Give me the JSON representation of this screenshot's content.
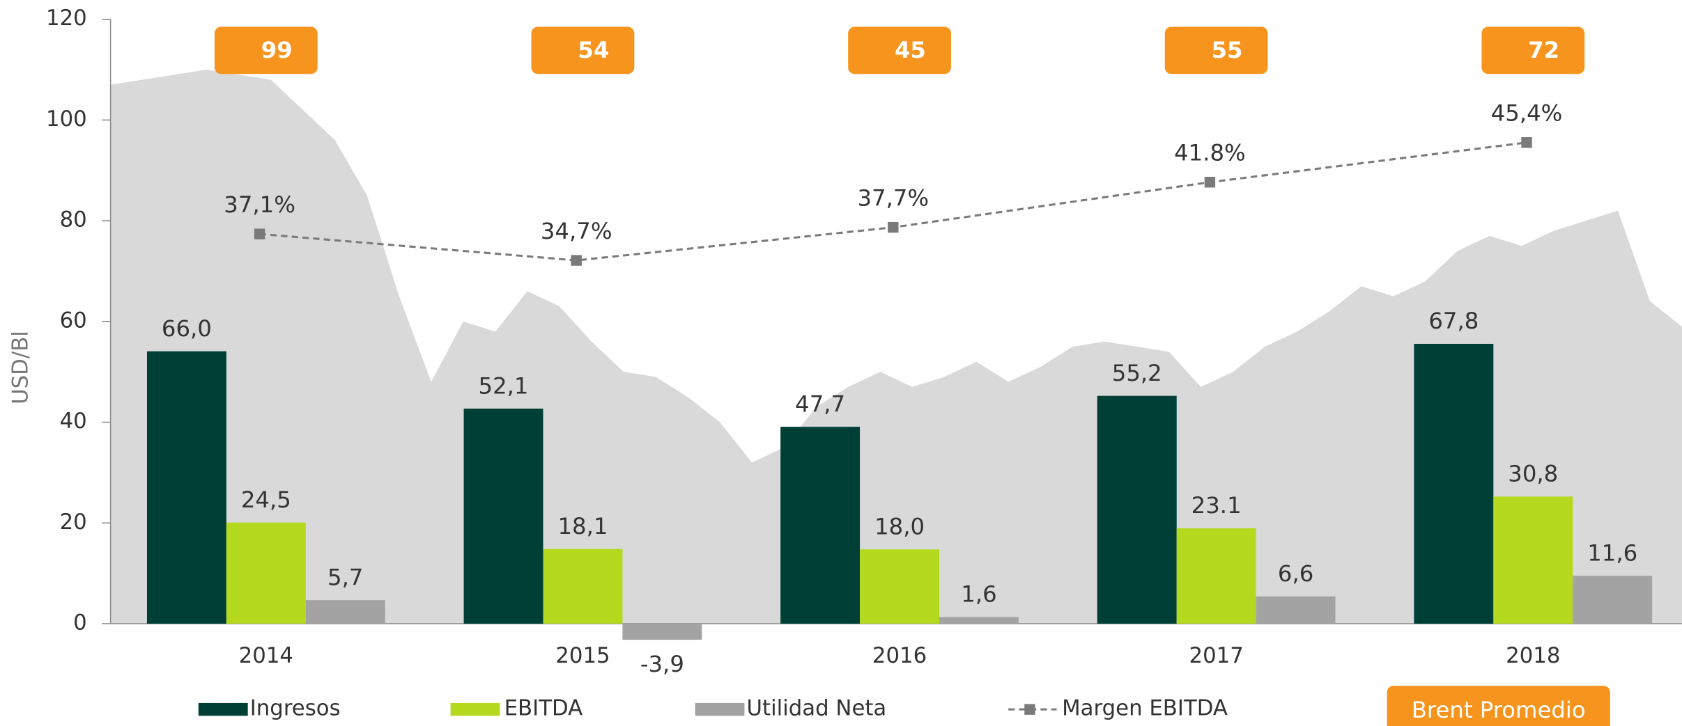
{
  "chart_data": {
    "type": "bar",
    "ylabel": "USD/Bl",
    "ylim": [
      0,
      120
    ],
    "yticks": [
      0,
      20,
      40,
      60,
      80,
      100,
      120
    ],
    "categories": [
      "2014",
      "2015",
      "2016",
      "2017",
      "2018"
    ],
    "series": [
      {
        "name": "Ingresos",
        "color": "#003f36",
        "values": [
          66.0,
          52.1,
          47.7,
          55.2,
          67.8
        ],
        "value_labels": [
          "66,0",
          "52,1",
          "47,7",
          "55,2",
          "67,8"
        ]
      },
      {
        "name": "EBITDA",
        "color": "#b5d91f",
        "values": [
          24.5,
          18.1,
          18.0,
          23.1,
          30.8
        ],
        "value_labels": [
          "24,5",
          "18,1",
          "18,0",
          "23.1",
          "30,8"
        ]
      },
      {
        "name": "Utilidad Neta",
        "color": "#a3a3a3",
        "values": [
          5.7,
          -3.9,
          1.6,
          6.6,
          11.6
        ],
        "value_labels": [
          "5,7",
          "-3,9",
          "1,6",
          "6,6",
          "11,6"
        ]
      }
    ],
    "line": {
      "name": "Margen EBITDA",
      "color": "#7a7a7a",
      "values": [
        37.1,
        34.7,
        37.7,
        41.8,
        45.4
      ],
      "value_labels": [
        "37,1%",
        "34,7%",
        "37,7%",
        "41.8%",
        "45,4%"
      ]
    },
    "brent": {
      "name": "Brent Promedio",
      "color": "#f7941d",
      "values": [
        99,
        54,
        45,
        55,
        72
      ]
    },
    "brent_area": {
      "color": "#d9d9d9",
      "values": [
        107,
        108,
        109,
        110,
        109,
        108,
        102,
        96,
        85,
        65,
        48,
        60,
        58,
        66,
        63,
        56,
        50,
        49,
        45,
        40,
        32,
        35,
        43,
        47,
        50,
        47,
        49,
        52,
        48,
        51,
        55,
        56,
        55,
        54,
        47,
        50,
        55,
        58,
        62,
        67,
        65,
        68,
        74,
        77,
        75,
        78,
        80,
        82,
        64,
        59
      ]
    }
  }
}
